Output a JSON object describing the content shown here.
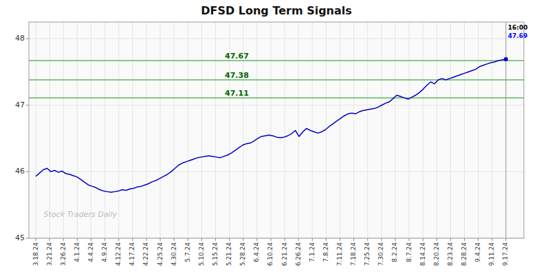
{
  "chart_data": {
    "type": "line",
    "title": "DFSD Long Term Signals",
    "color": "#0000cc",
    "grid": true,
    "xlim": [
      -0.5,
      35.3
    ],
    "xticks": [
      {
        "value": 0,
        "label": "3.18.24"
      },
      {
        "value": 1,
        "label": "3.21.24"
      },
      {
        "value": 2,
        "label": "3.26.24"
      },
      {
        "value": 3,
        "label": "4.1.24"
      },
      {
        "value": 4,
        "label": "4.4.24"
      },
      {
        "value": 5,
        "label": "4.9.24"
      },
      {
        "value": 6,
        "label": "4.12.24"
      },
      {
        "value": 7,
        "label": "4.17.24"
      },
      {
        "value": 8,
        "label": "4.22.24"
      },
      {
        "value": 9,
        "label": "4.25.24"
      },
      {
        "value": 10,
        "label": "4.30.24"
      },
      {
        "value": 11,
        "label": "5.7.24"
      },
      {
        "value": 12,
        "label": "5.10.24"
      },
      {
        "value": 13,
        "label": "5.15.24"
      },
      {
        "value": 14,
        "label": "5.21.24"
      },
      {
        "value": 15,
        "label": "5.28.24"
      },
      {
        "value": 16,
        "label": "6.4.24"
      },
      {
        "value": 17,
        "label": "6.10.24"
      },
      {
        "value": 18,
        "label": "6.21.24"
      },
      {
        "value": 19,
        "label": "6.26.24"
      },
      {
        "value": 20,
        "label": "7.1.24"
      },
      {
        "value": 21,
        "label": "7.8.24"
      },
      {
        "value": 22,
        "label": "7.11.24"
      },
      {
        "value": 23,
        "label": "7.18.24"
      },
      {
        "value": 24,
        "label": "7.25.24"
      },
      {
        "value": 25,
        "label": "7.30.24"
      },
      {
        "value": 26,
        "label": "8.2.24"
      },
      {
        "value": 27,
        "label": "8.7.24"
      },
      {
        "value": 28,
        "label": "8.14.24"
      },
      {
        "value": 29,
        "label": "8.20.24"
      },
      {
        "value": 30,
        "label": "8.23.24"
      },
      {
        "value": 31,
        "label": "8.28.24"
      },
      {
        "value": 32,
        "label": "9.4.24"
      },
      {
        "value": 33,
        "label": "9.11.24"
      },
      {
        "value": 34,
        "label": "9.17.24"
      }
    ],
    "ylim": [
      45.0,
      48.25
    ],
    "yticks": [
      45,
      46,
      47,
      48
    ],
    "x": [
      0,
      0.272,
      0.544,
      0.816,
      1.088,
      1.36,
      1.632,
      1.904,
      2.176,
      2.448,
      2.72,
      2.992,
      3.264,
      3.536,
      3.808,
      4.08,
      4.352,
      4.624,
      4.896,
      5.168,
      5.44,
      5.712,
      5.984,
      6.256,
      6.528,
      6.8,
      7.072,
      7.344,
      7.616,
      7.888,
      8.16,
      8.432,
      8.704,
      8.976,
      9.248,
      9.52,
      9.792,
      10.064,
      10.336,
      10.608,
      10.88,
      11.152,
      11.424,
      11.696,
      11.968,
      12.24,
      12.512,
      12.784,
      13.056,
      13.328,
      13.6,
      13.872,
      14.144,
      14.416,
      14.688,
      14.96,
      15.232,
      15.504,
      15.776,
      16.048,
      16.32,
      16.592,
      16.864,
      17.136,
      17.408,
      17.68,
      17.952,
      18.224,
      18.496,
      18.768,
      19.04,
      19.312,
      19.584,
      19.856,
      20.128,
      20.4,
      20.672,
      20.944,
      21.216,
      21.488,
      21.76,
      22.032,
      22.304,
      22.576,
      22.848,
      23.12,
      23.392,
      23.664,
      23.936,
      24.208,
      24.48,
      24.752,
      25.024,
      25.296,
      25.568,
      25.84,
      26.112,
      26.384,
      26.656,
      26.928,
      27.2,
      27.472,
      27.744,
      28.016,
      28.288,
      28.56,
      28.832,
      29.104,
      29.376,
      29.648,
      29.92,
      30.192,
      30.464,
      30.736,
      31.008,
      31.28,
      31.552,
      31.824,
      32.096,
      32.368,
      32.64,
      32.912,
      33.184,
      33.456,
      33.728,
      34
    ],
    "values": [
      45.93,
      45.98,
      46.03,
      46.05,
      46.0,
      46.02,
      45.99,
      46.01,
      45.97,
      45.96,
      45.94,
      45.92,
      45.88,
      45.84,
      45.8,
      45.78,
      45.76,
      45.73,
      45.71,
      45.7,
      45.69,
      45.7,
      45.71,
      45.73,
      45.72,
      45.74,
      45.75,
      45.77,
      45.78,
      45.8,
      45.82,
      45.85,
      45.87,
      45.9,
      45.93,
      45.96,
      46.0,
      46.05,
      46.1,
      46.13,
      46.15,
      46.17,
      46.19,
      46.21,
      46.22,
      46.23,
      46.24,
      46.23,
      46.22,
      46.21,
      46.23,
      46.25,
      46.28,
      46.32,
      46.36,
      46.4,
      46.42,
      46.43,
      46.46,
      46.5,
      46.53,
      46.54,
      46.55,
      46.54,
      46.52,
      46.51,
      46.52,
      46.54,
      46.57,
      46.62,
      46.53,
      46.6,
      46.65,
      46.62,
      46.6,
      46.58,
      46.6,
      46.63,
      46.68,
      46.72,
      46.76,
      46.8,
      46.84,
      46.87,
      46.88,
      46.87,
      46.9,
      46.92,
      46.93,
      46.94,
      46.95,
      46.97,
      47.0,
      47.03,
      47.05,
      47.1,
      47.15,
      47.13,
      47.11,
      47.09,
      47.12,
      47.15,
      47.19,
      47.24,
      47.3,
      47.35,
      47.32,
      47.38,
      47.4,
      47.38,
      47.4,
      47.42,
      47.44,
      47.46,
      47.48,
      47.5,
      47.52,
      47.54,
      47.58,
      47.6,
      47.62,
      47.64,
      47.65,
      47.67,
      47.68,
      47.69
    ],
    "hlines": [
      47.67,
      47.38,
      47.11
    ],
    "annotations": [
      "16:00",
      "47.69",
      "Stock Traders Daily"
    ]
  }
}
